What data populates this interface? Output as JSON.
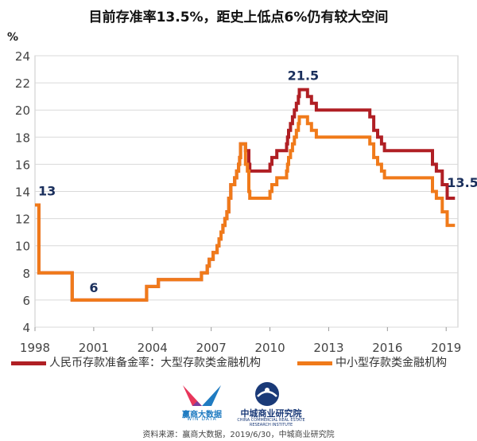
{
  "chart_data": {
    "type": "line",
    "title": "目前存准率13.5%，距史上低点6%仍有较大空间",
    "ylabel": "%",
    "xlim": [
      1998,
      2019.6
    ],
    "ylim": [
      4,
      24
    ],
    "yticks": [
      4,
      6,
      8,
      10,
      12,
      14,
      16,
      18,
      20,
      22,
      24
    ],
    "xticks": [
      1998,
      2001,
      2004,
      2007,
      2010,
      2013,
      2016,
      2019
    ],
    "grid": "horizontal",
    "legend_position": "bottom",
    "series": [
      {
        "name": "人民币存款准备金率：大型存款类金融机构",
        "color": "#b01f24",
        "points": [
          [
            1998.0,
            13
          ],
          [
            1998.2,
            13
          ],
          [
            1998.2,
            8
          ],
          [
            1999.9,
            8
          ],
          [
            1999.9,
            6
          ],
          [
            2003.7,
            6
          ],
          [
            2003.7,
            7
          ],
          [
            2004.3,
            7
          ],
          [
            2004.3,
            7.5
          ],
          [
            2006.5,
            7.5
          ],
          [
            2006.5,
            8
          ],
          [
            2006.8,
            8
          ],
          [
            2006.8,
            8.5
          ],
          [
            2006.9,
            8.5
          ],
          [
            2006.9,
            9
          ],
          [
            2007.1,
            9
          ],
          [
            2007.1,
            9.5
          ],
          [
            2007.3,
            9.5
          ],
          [
            2007.3,
            10
          ],
          [
            2007.4,
            10
          ],
          [
            2007.4,
            10.5
          ],
          [
            2007.5,
            10.5
          ],
          [
            2007.5,
            11
          ],
          [
            2007.6,
            11
          ],
          [
            2007.6,
            11.5
          ],
          [
            2007.7,
            11.5
          ],
          [
            2007.7,
            12
          ],
          [
            2007.8,
            12
          ],
          [
            2007.8,
            12.5
          ],
          [
            2007.9,
            12.5
          ],
          [
            2007.9,
            13.5
          ],
          [
            2008.0,
            13.5
          ],
          [
            2008.0,
            14.5
          ],
          [
            2008.2,
            14.5
          ],
          [
            2008.2,
            15
          ],
          [
            2008.3,
            15
          ],
          [
            2008.3,
            15.5
          ],
          [
            2008.4,
            15.5
          ],
          [
            2008.4,
            16
          ],
          [
            2008.45,
            16
          ],
          [
            2008.45,
            16.5
          ],
          [
            2008.5,
            16.5
          ],
          [
            2008.5,
            17.5
          ],
          [
            2008.75,
            17.5
          ],
          [
            2008.75,
            17
          ],
          [
            2008.92,
            17
          ],
          [
            2008.92,
            16
          ],
          [
            2008.97,
            16
          ],
          [
            2008.97,
            15.5
          ],
          [
            2010.0,
            15.5
          ],
          [
            2010.0,
            16
          ],
          [
            2010.1,
            16
          ],
          [
            2010.1,
            16.5
          ],
          [
            2010.35,
            16.5
          ],
          [
            2010.35,
            17
          ],
          [
            2010.85,
            17
          ],
          [
            2010.85,
            17.5
          ],
          [
            2010.9,
            17.5
          ],
          [
            2010.9,
            18
          ],
          [
            2010.95,
            18
          ],
          [
            2010.95,
            18.5
          ],
          [
            2011.05,
            18.5
          ],
          [
            2011.05,
            19
          ],
          [
            2011.15,
            19
          ],
          [
            2011.15,
            19.5
          ],
          [
            2011.25,
            19.5
          ],
          [
            2011.25,
            20
          ],
          [
            2011.35,
            20
          ],
          [
            2011.35,
            20.5
          ],
          [
            2011.45,
            20.5
          ],
          [
            2011.45,
            21
          ],
          [
            2011.5,
            21
          ],
          [
            2011.5,
            21.5
          ],
          [
            2011.92,
            21.5
          ],
          [
            2011.92,
            21
          ],
          [
            2012.12,
            21
          ],
          [
            2012.12,
            20.5
          ],
          [
            2012.37,
            20.5
          ],
          [
            2012.37,
            20
          ],
          [
            2015.1,
            20
          ],
          [
            2015.1,
            19.5
          ],
          [
            2015.3,
            19.5
          ],
          [
            2015.3,
            18.5
          ],
          [
            2015.5,
            18.5
          ],
          [
            2015.5,
            18
          ],
          [
            2015.7,
            18
          ],
          [
            2015.7,
            17.5
          ],
          [
            2015.85,
            17.5
          ],
          [
            2015.85,
            17
          ],
          [
            2018.3,
            17
          ],
          [
            2018.3,
            16
          ],
          [
            2018.5,
            16
          ],
          [
            2018.5,
            15.5
          ],
          [
            2018.8,
            15.5
          ],
          [
            2018.8,
            14.5
          ],
          [
            2019.05,
            14.5
          ],
          [
            2019.05,
            13.5
          ],
          [
            2019.45,
            13.5
          ]
        ]
      },
      {
        "name": "中小型存款类金融机构",
        "color": "#f07a1a",
        "points": [
          [
            1998.0,
            13
          ],
          [
            1998.2,
            13
          ],
          [
            1998.2,
            8
          ],
          [
            1999.9,
            8
          ],
          [
            1999.9,
            6
          ],
          [
            2003.7,
            6
          ],
          [
            2003.7,
            7
          ],
          [
            2004.3,
            7
          ],
          [
            2004.3,
            7.5
          ],
          [
            2006.5,
            7.5
          ],
          [
            2006.5,
            8
          ],
          [
            2006.8,
            8
          ],
          [
            2006.8,
            8.5
          ],
          [
            2006.9,
            8.5
          ],
          [
            2006.9,
            9
          ],
          [
            2007.1,
            9
          ],
          [
            2007.1,
            9.5
          ],
          [
            2007.3,
            9.5
          ],
          [
            2007.3,
            10
          ],
          [
            2007.4,
            10
          ],
          [
            2007.4,
            10.5
          ],
          [
            2007.5,
            10.5
          ],
          [
            2007.5,
            11
          ],
          [
            2007.6,
            11
          ],
          [
            2007.6,
            11.5
          ],
          [
            2007.7,
            11.5
          ],
          [
            2007.7,
            12
          ],
          [
            2007.8,
            12
          ],
          [
            2007.8,
            12.5
          ],
          [
            2007.9,
            12.5
          ],
          [
            2007.9,
            13.5
          ],
          [
            2008.0,
            13.5
          ],
          [
            2008.0,
            14.5
          ],
          [
            2008.2,
            14.5
          ],
          [
            2008.2,
            15
          ],
          [
            2008.3,
            15
          ],
          [
            2008.3,
            15.5
          ],
          [
            2008.4,
            15.5
          ],
          [
            2008.4,
            16
          ],
          [
            2008.45,
            16
          ],
          [
            2008.45,
            16.5
          ],
          [
            2008.5,
            16.5
          ],
          [
            2008.5,
            17.5
          ],
          [
            2008.75,
            17.5
          ],
          [
            2008.75,
            16
          ],
          [
            2008.85,
            16
          ],
          [
            2008.85,
            15.5
          ],
          [
            2008.92,
            15.5
          ],
          [
            2008.92,
            14
          ],
          [
            2008.97,
            14
          ],
          [
            2008.97,
            13.5
          ],
          [
            2010.0,
            13.5
          ],
          [
            2010.0,
            14
          ],
          [
            2010.1,
            14
          ],
          [
            2010.1,
            14.5
          ],
          [
            2010.35,
            14.5
          ],
          [
            2010.35,
            15
          ],
          [
            2010.85,
            15
          ],
          [
            2010.85,
            15.5
          ],
          [
            2010.9,
            15.5
          ],
          [
            2010.9,
            16
          ],
          [
            2010.95,
            16
          ],
          [
            2010.95,
            16.5
          ],
          [
            2011.05,
            16.5
          ],
          [
            2011.05,
            17
          ],
          [
            2011.15,
            17
          ],
          [
            2011.15,
            17.5
          ],
          [
            2011.25,
            17.5
          ],
          [
            2011.25,
            18
          ],
          [
            2011.35,
            18
          ],
          [
            2011.35,
            18.5
          ],
          [
            2011.45,
            18.5
          ],
          [
            2011.45,
            19
          ],
          [
            2011.5,
            19
          ],
          [
            2011.5,
            19.5
          ],
          [
            2011.92,
            19.5
          ],
          [
            2011.92,
            19
          ],
          [
            2012.12,
            19
          ],
          [
            2012.12,
            18.5
          ],
          [
            2012.37,
            18.5
          ],
          [
            2012.37,
            18
          ],
          [
            2015.1,
            18
          ],
          [
            2015.1,
            17.5
          ],
          [
            2015.3,
            17.5
          ],
          [
            2015.3,
            16.5
          ],
          [
            2015.5,
            16.5
          ],
          [
            2015.5,
            16
          ],
          [
            2015.7,
            16
          ],
          [
            2015.7,
            15.5
          ],
          [
            2015.85,
            15.5
          ],
          [
            2015.85,
            15
          ],
          [
            2018.3,
            15
          ],
          [
            2018.3,
            14
          ],
          [
            2018.5,
            14
          ],
          [
            2018.5,
            13.5
          ],
          [
            2018.8,
            13.5
          ],
          [
            2018.8,
            12.5
          ],
          [
            2019.05,
            12.5
          ],
          [
            2019.05,
            11.5
          ],
          [
            2019.45,
            11.5
          ]
        ]
      }
    ],
    "annotations": [
      {
        "text": "13",
        "x": 1998.0,
        "y": 13
      },
      {
        "text": "6",
        "x": 2001.0,
        "y": 6
      },
      {
        "text": "21.5",
        "x": 2011.7,
        "y": 21.5
      },
      {
        "text": "13.5",
        "x": 2019.45,
        "y": 13.5
      }
    ]
  },
  "logos": {
    "wind_text": "赢商大数据",
    "wind_sub": "WIN DATA",
    "zc_text": "中城商业研究院",
    "zc_sub": "CHINA COMMERCIAL REAL ESTATE RESEARCH INSTITUTE"
  },
  "source": "资料来源：赢商大数据，2019/6/30，中城商业研究院"
}
